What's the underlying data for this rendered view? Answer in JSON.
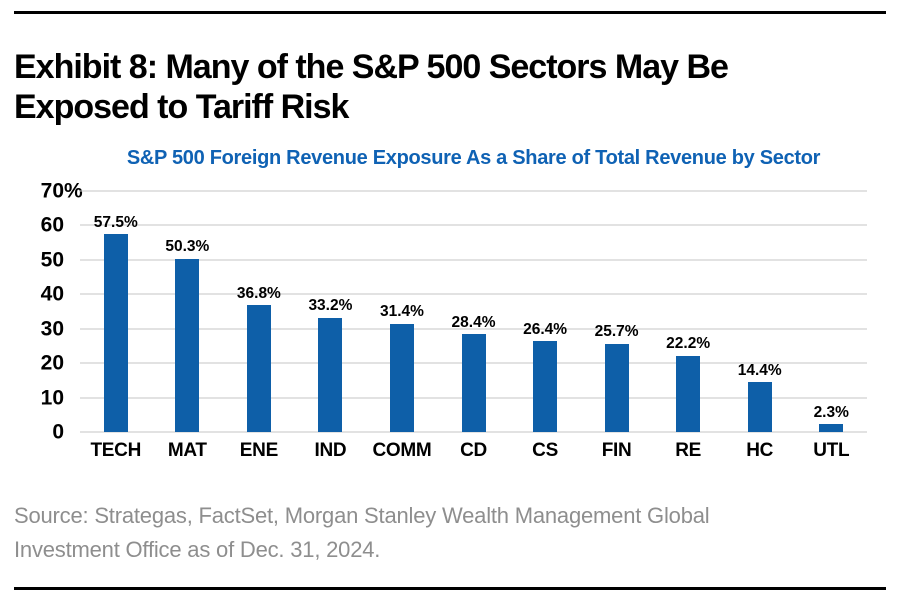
{
  "page": {
    "exhibit_title": "Exhibit 8: Many of the S&P 500 Sectors May Be\nExposed to Tariff Risk",
    "source_note": "Source: Strategas, FactSet, Morgan Stanley Wealth Management Global\nInvestment Office as of Dec. 31, 2024."
  },
  "colors": {
    "bar": "#0e5fa8",
    "title_blue": "#0f62b4",
    "gridline": "#c4c4c4",
    "source_gray": "#8e8e8e",
    "rule_black": "#000000"
  },
  "chart_data": {
    "type": "bar",
    "title": "S&P 500 Foreign Revenue Exposure As a Share of Total Revenue by Sector",
    "categories": [
      "TECH",
      "MAT",
      "ENE",
      "IND",
      "COMM",
      "CD",
      "CS",
      "FIN",
      "RE",
      "HC",
      "UTL"
    ],
    "values": [
      57.5,
      50.3,
      36.8,
      33.2,
      31.4,
      28.4,
      26.4,
      25.7,
      22.2,
      14.4,
      2.3
    ],
    "value_labels": [
      "57.5%",
      "50.3%",
      "36.8%",
      "33.2%",
      "31.4%",
      "28.4%",
      "26.4%",
      "25.7%",
      "22.2%",
      "14.4%",
      "2.3%"
    ],
    "xlabel": "",
    "ylabel": "",
    "ylim": [
      0,
      70
    ],
    "yticks": [
      {
        "value": 70,
        "label": "70",
        "suffix": "%"
      },
      {
        "value": 60,
        "label": "60",
        "suffix": ""
      },
      {
        "value": 50,
        "label": "50",
        "suffix": ""
      },
      {
        "value": 40,
        "label": "40",
        "suffix": ""
      },
      {
        "value": 30,
        "label": "30",
        "suffix": ""
      },
      {
        "value": 20,
        "label": "20",
        "suffix": ""
      },
      {
        "value": 10,
        "label": "10",
        "suffix": ""
      },
      {
        "value": 0,
        "label": "0",
        "suffix": ""
      }
    ],
    "grid": true,
    "legend": false
  }
}
